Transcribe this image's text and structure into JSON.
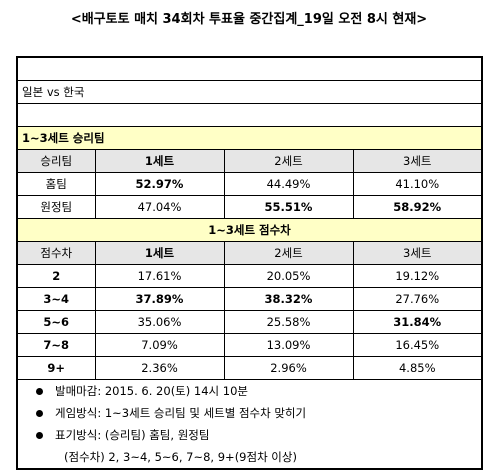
{
  "title": "<배구토토 매치 34회차 투표율 중간집계_19일 오전 8시 현재>",
  "match": "일본 vs 한국",
  "section1": {
    "title": "1~3세트 승리팀",
    "headers": [
      "승리팀",
      "1세트",
      "2세트",
      "3세트"
    ],
    "rows": [
      {
        "label": "홈팀",
        "values": [
          "52.97%",
          "44.49%",
          "41.10%"
        ]
      },
      {
        "label": "원정팀",
        "values": [
          "47.04%",
          "55.51%",
          "58.92%"
        ]
      }
    ]
  },
  "section2": {
    "title": "1~3세트 점수차",
    "headers": [
      "점수차",
      "1세트",
      "2세트",
      "3세트"
    ],
    "rows": [
      {
        "label": "2",
        "values": [
          "17.61%",
          "20.05%",
          "19.12%"
        ]
      },
      {
        "label": "3~4",
        "values": [
          "37.89%",
          "38.32%",
          "27.76%"
        ]
      },
      {
        "label": "5~6",
        "values": [
          "35.06%",
          "25.58%",
          "31.84%"
        ]
      },
      {
        "label": "7~8",
        "values": [
          "7.09%",
          "13.09%",
          "16.45%"
        ]
      },
      {
        "label": "9+",
        "values": [
          "2.36%",
          "2.96%",
          "4.85%"
        ]
      }
    ]
  },
  "notes": [
    "발매마감: 2015. 6. 20(토) 14시 10분",
    "게임방식: 1~3세트 승리팀 및 세트별 점수차 맞히기",
    "표기방식: (승리팀) 홈팀, 원정팀"
  ],
  "notes_continuation": "(점수차) 2, 3~4, 5~6, 7~8, 9+(9점차 이상)"
}
